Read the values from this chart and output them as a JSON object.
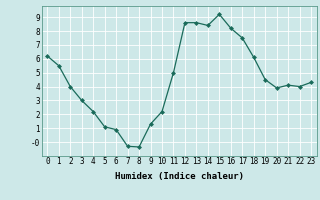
{
  "x": [
    0,
    1,
    2,
    3,
    4,
    5,
    6,
    7,
    8,
    9,
    10,
    11,
    12,
    13,
    14,
    15,
    16,
    17,
    18,
    19,
    20,
    21,
    22,
    23
  ],
  "y": [
    6.2,
    5.5,
    4.0,
    3.0,
    2.2,
    1.1,
    0.9,
    -0.3,
    -0.35,
    1.3,
    2.2,
    5.0,
    8.6,
    8.6,
    8.4,
    9.2,
    8.2,
    7.5,
    6.1,
    4.5,
    3.9,
    4.1,
    4.0,
    4.3
  ],
  "line_color": "#1a6b5a",
  "marker": "D",
  "marker_size": 2,
  "bg_color": "#cde8e8",
  "grid_color": "#ffffff",
  "xlabel": "Humidex (Indice chaleur)",
  "xlim": [
    -0.5,
    23.5
  ],
  "ylim": [
    -1.0,
    9.8
  ],
  "yticks": [
    0,
    1,
    2,
    3,
    4,
    5,
    6,
    7,
    8,
    9
  ],
  "ytick_labels": [
    "-0",
    "1",
    "2",
    "3",
    "4",
    "5",
    "6",
    "7",
    "8",
    "9"
  ],
  "xticks": [
    0,
    1,
    2,
    3,
    4,
    5,
    6,
    7,
    8,
    9,
    10,
    11,
    12,
    13,
    14,
    15,
    16,
    17,
    18,
    19,
    20,
    21,
    22,
    23
  ],
  "tick_fontsize": 5.5,
  "xlabel_fontsize": 6.5
}
